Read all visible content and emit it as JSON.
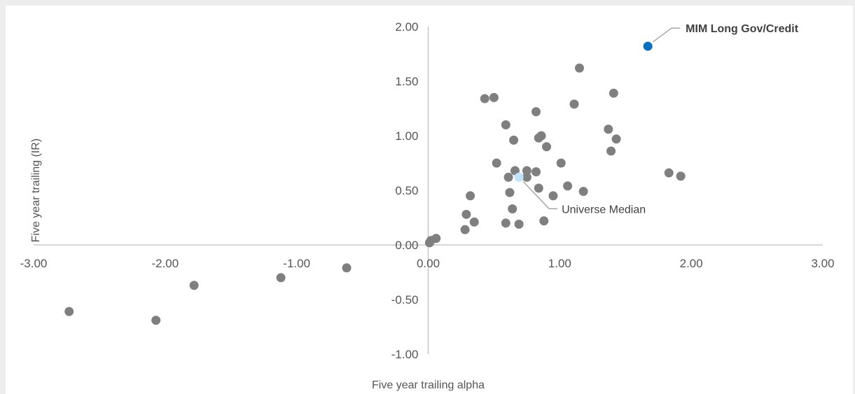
{
  "chart_data": {
    "type": "scatter",
    "title": "",
    "xlabel": "Five year trailing alpha",
    "ylabel": "Five year trailing (IR)",
    "xlim": [
      -3,
      3
    ],
    "ylim": [
      -1,
      2
    ],
    "x_ticks": [
      "-3.00",
      "-2.00",
      "-1.00",
      "0.00",
      "1.00",
      "2.00",
      "3.00"
    ],
    "y_ticks": [
      "2.00",
      "1.50",
      "1.00",
      "0.50",
      "0.00",
      "-0.50",
      "-1.00"
    ],
    "grid": false,
    "legend": "none",
    "colors": {
      "universe": "#7f7f7f",
      "highlight": "#0b6fc0",
      "median": "#bfe3f7",
      "leader": "#a6a6a6",
      "axis": "#bfbfbf"
    },
    "series": [
      {
        "role": "universe",
        "points": [
          [
            -2.73,
            -0.61
          ],
          [
            -2.07,
            -0.69
          ],
          [
            -1.78,
            -0.37
          ],
          [
            -1.12,
            -0.3
          ],
          [
            -0.62,
            -0.21
          ],
          [
            0.01,
            0.02
          ],
          [
            0.02,
            0.04
          ],
          [
            0.06,
            0.06
          ],
          [
            0.28,
            0.14
          ],
          [
            0.29,
            0.28
          ],
          [
            0.32,
            0.45
          ],
          [
            0.35,
            0.21
          ],
          [
            0.43,
            1.34
          ],
          [
            0.5,
            1.35
          ],
          [
            0.52,
            0.75
          ],
          [
            0.59,
            1.1
          ],
          [
            0.59,
            0.2
          ],
          [
            0.61,
            0.62
          ],
          [
            0.62,
            0.48
          ],
          [
            0.64,
            0.33
          ],
          [
            0.65,
            0.96
          ],
          [
            0.66,
            0.68
          ],
          [
            0.69,
            0.19
          ],
          [
            0.75,
            0.68
          ],
          [
            0.75,
            0.62
          ],
          [
            0.82,
            1.22
          ],
          [
            0.82,
            0.67
          ],
          [
            0.84,
            0.98
          ],
          [
            0.84,
            0.52
          ],
          [
            0.86,
            1.0
          ],
          [
            0.88,
            0.22
          ],
          [
            0.9,
            0.9
          ],
          [
            0.95,
            0.45
          ],
          [
            1.01,
            0.75
          ],
          [
            1.06,
            0.54
          ],
          [
            1.11,
            1.29
          ],
          [
            1.15,
            1.62
          ],
          [
            1.18,
            0.49
          ],
          [
            1.37,
            1.06
          ],
          [
            1.39,
            0.86
          ],
          [
            1.41,
            1.39
          ],
          [
            1.43,
            0.97
          ],
          [
            1.83,
            0.66
          ],
          [
            1.92,
            0.63
          ]
        ]
      },
      {
        "role": "median",
        "name": "Universe Median",
        "points": [
          [
            0.69,
            0.62
          ]
        ]
      },
      {
        "role": "highlight",
        "name": "MIM Long Gov/Credit",
        "points": [
          [
            1.67,
            1.82
          ]
        ]
      }
    ],
    "annotations": {
      "highlight_label": "MIM Long Gov/Credit",
      "median_label": "Universe Median"
    }
  }
}
